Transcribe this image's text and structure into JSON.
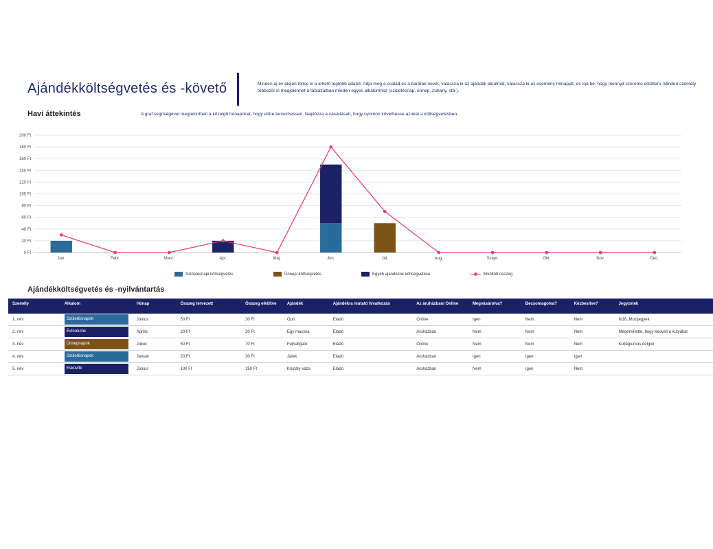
{
  "page": {
    "title": "Ajándékköltségvetés és -követő",
    "intro": "Minden új év elején töltse ki a lehető legtöbb adatot. Adja meg a család és a barátok nevét, válassza ki az ajándék alkalmát, válassza ki az esemény hónapját, és írja be, hogy mennyit szeretne elkölteni. Minden személy többször is megjelenhet a táblázatban minden egyes alkalomhoz (születésnap, ünnep, zuhany, stb.).",
    "overview_heading": "Havi áttekintés",
    "overview_desc": "A graf segítségével megtekintheti a közelgő hónapokat, hogy előre tervezhessen. Naplózza a vásárlásait, hogy nyomon követhesse azokat a költségvetésben.",
    "table_heading": "Ajándékköltségvetés és -nyilvántartás"
  },
  "colors": {
    "navy": "#1b2164",
    "blue": "#2a6b9b",
    "brown": "#7c5314",
    "pink": "#e8417a",
    "grid": "#dde6ee"
  },
  "chart_data": {
    "type": "bar",
    "stacked": true,
    "categories": [
      "Jan.",
      "Febr.",
      "Marc.",
      "Apr.",
      "Máj.",
      "Jún.",
      "Júl.",
      "Aug.",
      "Szept.",
      "Okt.",
      "Nov.",
      "Dec."
    ],
    "series": [
      {
        "name": "Születésnapi költségvetés",
        "type": "bar",
        "color": "#2a6b9b",
        "values": [
          20,
          0,
          0,
          0,
          0,
          50,
          0,
          0,
          0,
          0,
          0,
          0
        ]
      },
      {
        "name": "Ünnepi költségvetés",
        "type": "bar",
        "color": "#7c5314",
        "values": [
          0,
          0,
          0,
          0,
          0,
          0,
          50,
          0,
          0,
          0,
          0,
          0
        ]
      },
      {
        "name": "Egyéb ajándékok költségvetése",
        "type": "bar",
        "color": "#1b2164",
        "values": [
          0,
          0,
          0,
          20,
          0,
          100,
          0,
          0,
          0,
          0,
          0,
          0
        ]
      },
      {
        "name": "Elköltött összeg",
        "type": "line",
        "color": "#e8417a",
        "values": [
          30,
          0,
          0,
          20,
          0,
          180,
          70,
          0,
          0,
          0,
          0,
          0
        ]
      }
    ],
    "yticks": [
      "0 Ft",
      "20 Ft",
      "40 Ft",
      "60 Ft",
      "80 Ft",
      "100 Ft",
      "120 Ft",
      "140 Ft",
      "160 Ft",
      "180 Ft",
      "200 Ft"
    ],
    "ylim": [
      0,
      200
    ],
    "grid": true,
    "legend": "bottom"
  },
  "table": {
    "headers": [
      "Személy",
      "Alkalom",
      "Hónap",
      "Összeg tervezett",
      "Összeg elköltve",
      "Ajándék",
      "Ajándékra mutató hivatkozás",
      "Az áruházban/ Online",
      "Megvásárolva?",
      "Becsomagolva?",
      "Kézbesítve?",
      "Jegyzetek"
    ],
    "rows": [
      {
        "person": "1. név",
        "occasion": "Születésnapok",
        "occ_type": "birthday",
        "month": "Június",
        "planned": "50 Ft",
        "spent": "30 Ft",
        "gift": "Opó",
        "link": "Eladó",
        "store": "Online",
        "bought": "Igen",
        "wrapped": "Nem",
        "delivered": "Nem",
        "notes": "6/16, Mozijegyek"
      },
      {
        "person": "2. név",
        "occasion": "Évfordulók",
        "occ_type": "anniv",
        "month": "Április",
        "planned": "20 Ft",
        "spent": "20 Ft",
        "gift": "Egy macska",
        "link": "Eladó",
        "store": "Áruházban",
        "bought": "Nem",
        "wrapped": "Nem",
        "delivered": "Nem",
        "notes": "Megemlítette, hogy kedveli a kutyákat"
      },
      {
        "person": "3. név",
        "occasion": "Ünnepnapok",
        "occ_type": "holiday",
        "month": "Július",
        "planned": "50 Ft",
        "spent": "70 Ft",
        "gift": "Fejhallgató",
        "link": "Eladó",
        "store": "Online",
        "bought": "Nem",
        "wrapped": "Nem",
        "delivered": "Nem",
        "notes": "Kollégiumos dolgok"
      },
      {
        "person": "4. név",
        "occasion": "Születésnapok",
        "occ_type": "birthday",
        "month": "Január",
        "planned": "20 Ft",
        "spent": "30 Ft",
        "gift": "Játék",
        "link": "Eladó",
        "store": "Áruházban",
        "bought": "Igen",
        "wrapped": "Igen",
        "delivered": "Igen",
        "notes": ""
      },
      {
        "person": "5. név",
        "occasion": "Esküvők",
        "occ_type": "wedding",
        "month": "Június",
        "planned": "100 Ft",
        "spent": "150 Ft",
        "gift": "Kristály váza",
        "link": "Eladó",
        "store": "Áruházban",
        "bought": "Nem",
        "wrapped": "Igen",
        "delivered": "Nem",
        "notes": ""
      }
    ]
  }
}
